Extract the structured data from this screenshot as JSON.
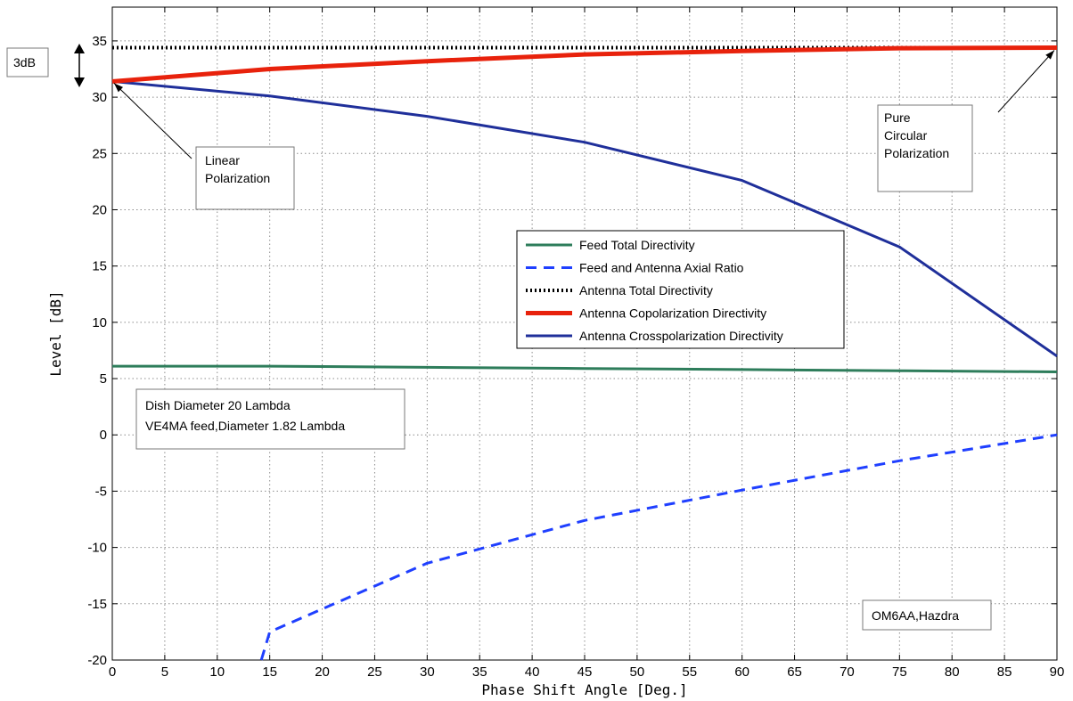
{
  "chart_data": {
    "type": "line",
    "xlabel": "Phase Shift Angle [Deg.]",
    "ylabel": "Level [dB]",
    "xlim": [
      0,
      90
    ],
    "ylim": [
      -20,
      38
    ],
    "xticks": [
      0,
      5,
      10,
      15,
      20,
      25,
      30,
      35,
      40,
      45,
      50,
      55,
      60,
      65,
      70,
      75,
      80,
      85,
      90
    ],
    "yticks": [
      -20,
      -15,
      -10,
      -5,
      0,
      5,
      10,
      15,
      20,
      25,
      30,
      35
    ],
    "grid": true,
    "legend_position": "center-right",
    "series": [
      {
        "name": "Feed Total Directivity",
        "color": "#2e7d5b",
        "style": "solid",
        "x": [
          0,
          15,
          30,
          45,
          60,
          75,
          90
        ],
        "y": [
          6.1,
          6.1,
          6.0,
          5.9,
          5.8,
          5.7,
          5.6
        ]
      },
      {
        "name": "Feed and Antenna Axial Ratio",
        "color": "#1f3fff",
        "style": "dashed",
        "x": [
          14.2,
          15,
          30,
          45,
          60,
          75,
          90
        ],
        "y": [
          -20,
          -17.5,
          -11.4,
          -7.6,
          -4.9,
          -2.3,
          0.0
        ]
      },
      {
        "name": "Antenna Total Directivity",
        "color": "#000000",
        "style": "dotted",
        "x": [
          0,
          15,
          30,
          45,
          60,
          75,
          90
        ],
        "y": [
          34.4,
          34.4,
          34.4,
          34.4,
          34.4,
          34.4,
          34.4
        ]
      },
      {
        "name": "Antenna Copolarization Directivity",
        "color": "#e8220c",
        "style": "solid",
        "x": [
          0,
          15,
          30,
          45,
          60,
          75,
          90
        ],
        "y": [
          31.4,
          32.5,
          33.2,
          33.8,
          34.1,
          34.35,
          34.4
        ]
      },
      {
        "name": "Antenna Crosspolarization Directivity",
        "color": "#1f2f9a",
        "style": "solid",
        "x": [
          0,
          15,
          30,
          45,
          60,
          75,
          90
        ],
        "y": [
          31.4,
          30.1,
          28.3,
          26.0,
          22.6,
          16.7,
          7.0
        ]
      }
    ],
    "annotations": [
      {
        "id": "linear",
        "lines": [
          "Linear",
          "Polarization"
        ],
        "arrow_to": [
          0,
          31.4
        ]
      },
      {
        "id": "circular",
        "lines": [
          "Pure",
          "Circular",
          "Polarization"
        ],
        "arrow_to": [
          90,
          34.4
        ]
      },
      {
        "id": "threedb",
        "lines": [
          "3dB"
        ]
      },
      {
        "id": "dish",
        "lines": [
          "Dish Diameter 20 Lambda",
          "VE4MA feed,Diameter 1.82 Lambda"
        ]
      },
      {
        "id": "author",
        "lines": [
          "OM6AA,Hazdra"
        ]
      }
    ]
  }
}
